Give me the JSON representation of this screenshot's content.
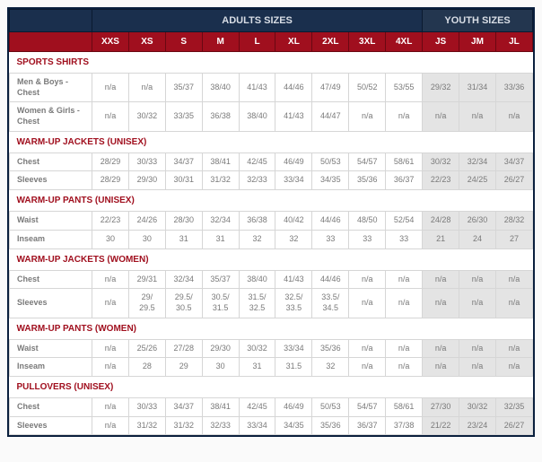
{
  "headers": {
    "adults": "ADULTS SIZES",
    "youth": "YOUTH SIZES",
    "sizes": [
      "XXS",
      "XS",
      "S",
      "M",
      "L",
      "XL",
      "2XL",
      "3XL",
      "4XL",
      "JS",
      "JM",
      "JL"
    ]
  },
  "sections": [
    {
      "title": "SPORTS SHIRTS",
      "rows": [
        {
          "label": "Men & Boys - Chest",
          "vals": [
            "n/a",
            "n/a",
            "35/37",
            "38/40",
            "41/43",
            "44/46",
            "47/49",
            "50/52",
            "53/55",
            "29/32",
            "31/34",
            "33/36"
          ]
        },
        {
          "label": "Women & Girls - Chest",
          "vals": [
            "n/a",
            "30/32",
            "33/35",
            "36/38",
            "38/40",
            "41/43",
            "44/47",
            "n/a",
            "n/a",
            "n/a",
            "n/a",
            "n/a"
          ]
        }
      ]
    },
    {
      "title": "WARM-UP JACKETS (UNISEX)",
      "rows": [
        {
          "label": "Chest",
          "vals": [
            "28/29",
            "30/33",
            "34/37",
            "38/41",
            "42/45",
            "46/49",
            "50/53",
            "54/57",
            "58/61",
            "30/32",
            "32/34",
            "34/37"
          ]
        },
        {
          "label": "Sleeves",
          "vals": [
            "28/29",
            "29/30",
            "30/31",
            "31/32",
            "32/33",
            "33/34",
            "34/35",
            "35/36",
            "36/37",
            "22/23",
            "24/25",
            "26/27"
          ]
        }
      ]
    },
    {
      "title": "WARM-UP PANTS (UNISEX)",
      "rows": [
        {
          "label": "Waist",
          "vals": [
            "22/23",
            "24/26",
            "28/30",
            "32/34",
            "36/38",
            "40/42",
            "44/46",
            "48/50",
            "52/54",
            "24/28",
            "26/30",
            "28/32"
          ]
        },
        {
          "label": "Inseam",
          "vals": [
            "30",
            "30",
            "31",
            "31",
            "32",
            "32",
            "33",
            "33",
            "33",
            "21",
            "24",
            "27"
          ]
        }
      ]
    },
    {
      "title": "WARM-UP JACKETS (WOMEN)",
      "rows": [
        {
          "label": "Chest",
          "vals": [
            "n/a",
            "29/31",
            "32/34",
            "35/37",
            "38/40",
            "41/43",
            "44/46",
            "n/a",
            "n/a",
            "n/a",
            "n/a",
            "n/a"
          ]
        },
        {
          "label": "Sleeves",
          "vals": [
            "n/a",
            "29/\n29.5",
            "29.5/\n30.5",
            "30.5/\n31.5",
            "31.5/\n32.5",
            "32.5/\n33.5",
            "33.5/\n34.5",
            "n/a",
            "n/a",
            "n/a",
            "n/a",
            "n/a"
          ]
        }
      ]
    },
    {
      "title": "WARM-UP PANTS (WOMEN)",
      "rows": [
        {
          "label": "Waist",
          "vals": [
            "n/a",
            "25/26",
            "27/28",
            "29/30",
            "30/32",
            "33/34",
            "35/36",
            "n/a",
            "n/a",
            "n/a",
            "n/a",
            "n/a"
          ]
        },
        {
          "label": "Inseam",
          "vals": [
            "n/a",
            "28",
            "29",
            "30",
            "31",
            "31.5",
            "32",
            "n/a",
            "n/a",
            "n/a",
            "n/a",
            "n/a"
          ]
        }
      ]
    },
    {
      "title": "PULLOVERS (UNISEX)",
      "rows": [
        {
          "label": "Chest",
          "vals": [
            "n/a",
            "30/33",
            "34/37",
            "38/41",
            "42/45",
            "46/49",
            "50/53",
            "54/57",
            "58/61",
            "27/30",
            "30/32",
            "32/35"
          ]
        },
        {
          "label": "Sleeves",
          "vals": [
            "n/a",
            "31/32",
            "31/32",
            "32/33",
            "33/34",
            "34/35",
            "35/36",
            "36/37",
            "37/38",
            "21/22",
            "23/24",
            "26/27"
          ]
        }
      ]
    }
  ]
}
